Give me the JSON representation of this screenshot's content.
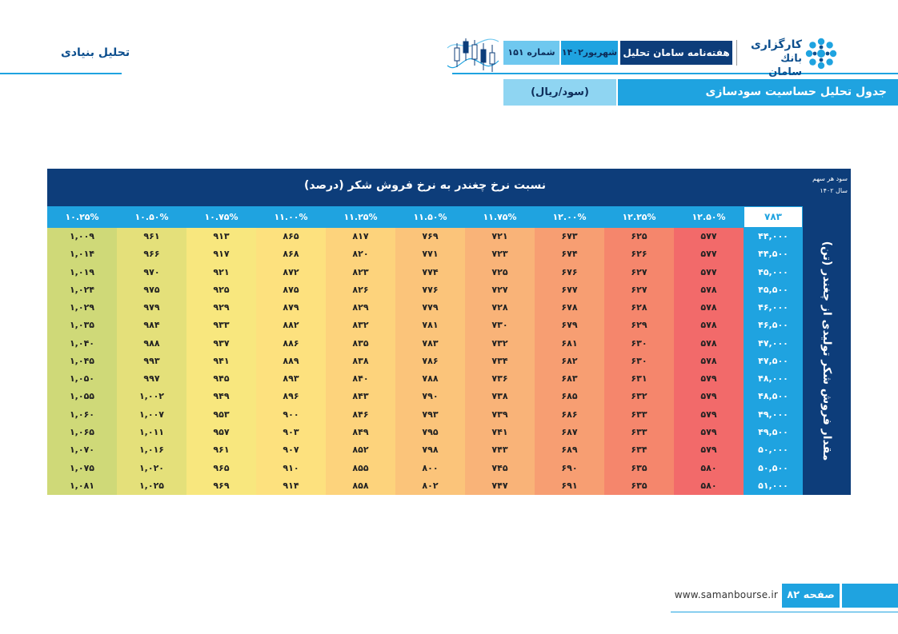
{
  "header": {
    "section_title": "تحلیل بنیادی",
    "brand_line1": "کارگزاری",
    "brand_line2": "بانك سامان",
    "weekly_label": "هفته‌نامه سامان تحلیل",
    "month_label": "شهریور۱۴۰۲",
    "issue_label": "شماره ۱۵۱",
    "page_title": "جدول تحلیل حساسیت سودسازی",
    "unit_label": "(سود/ریال)"
  },
  "table": {
    "header_title": "نسبت نرخ چغندر به نرخ فروش شکر (درصد)",
    "corner_line1": "سود هر سهم",
    "corner_line2": "سال ۱۴۰۲",
    "base_value": "۷۸۳",
    "side_label": "مقدار فروش شکر تولیدی از چغندر (تن)",
    "columns": [
      "۱۲.۵۰%",
      "۱۲.۲۵%",
      "۱۲.۰۰%",
      "۱۱.۷۵%",
      "۱۱.۵۰%",
      "۱۱.۲۵%",
      "۱۱.۰۰%",
      "۱۰.۷۵%",
      "۱۰.۵۰%",
      "۱۰.۲۵%"
    ],
    "column_colors": [
      "#f26a6a",
      "#f5866c",
      "#f79e72",
      "#f9b378",
      "#fbc47a",
      "#fdd37c",
      "#fde17e",
      "#f8e77e",
      "#e4e07a",
      "#cfd978"
    ],
    "rows": [
      {
        "label": "۴۴,۰۰۰",
        "values": [
          "۵۷۷",
          "۶۲۵",
          "۶۷۳",
          "۷۲۱",
          "۷۶۹",
          "۸۱۷",
          "۸۶۵",
          "۹۱۳",
          "۹۶۱",
          "۱,۰۰۹"
        ]
      },
      {
        "label": "۴۴,۵۰۰",
        "values": [
          "۵۷۷",
          "۶۲۶",
          "۶۷۴",
          "۷۲۳",
          "۷۷۱",
          "۸۲۰",
          "۸۶۸",
          "۹۱۷",
          "۹۶۶",
          "۱,۰۱۴"
        ]
      },
      {
        "label": "۴۵,۰۰۰",
        "values": [
          "۵۷۷",
          "۶۲۷",
          "۶۷۶",
          "۷۲۵",
          "۷۷۴",
          "۸۲۳",
          "۸۷۲",
          "۹۲۱",
          "۹۷۰",
          "۱,۰۱۹"
        ]
      },
      {
        "label": "۴۵,۵۰۰",
        "values": [
          "۵۷۸",
          "۶۲۷",
          "۶۷۷",
          "۷۲۷",
          "۷۷۶",
          "۸۲۶",
          "۸۷۵",
          "۹۲۵",
          "۹۷۵",
          "۱,۰۲۴"
        ]
      },
      {
        "label": "۴۶,۰۰۰",
        "values": [
          "۵۷۸",
          "۶۲۸",
          "۶۷۸",
          "۷۲۸",
          "۷۷۹",
          "۸۲۹",
          "۸۷۹",
          "۹۲۹",
          "۹۷۹",
          "۱,۰۲۹"
        ]
      },
      {
        "label": "۴۶,۵۰۰",
        "values": [
          "۵۷۸",
          "۶۲۹",
          "۶۷۹",
          "۷۳۰",
          "۷۸۱",
          "۸۳۲",
          "۸۸۲",
          "۹۳۳",
          "۹۸۴",
          "۱,۰۳۵"
        ]
      },
      {
        "label": "۴۷,۰۰۰",
        "values": [
          "۵۷۸",
          "۶۳۰",
          "۶۸۱",
          "۷۳۲",
          "۷۸۳",
          "۸۳۵",
          "۸۸۶",
          "۹۳۷",
          "۹۸۸",
          "۱,۰۴۰"
        ]
      },
      {
        "label": "۴۷,۵۰۰",
        "values": [
          "۵۷۸",
          "۶۳۰",
          "۶۸۲",
          "۷۳۴",
          "۷۸۶",
          "۸۳۸",
          "۸۸۹",
          "۹۴۱",
          "۹۹۳",
          "۱,۰۴۵"
        ]
      },
      {
        "label": "۴۸,۰۰۰",
        "values": [
          "۵۷۹",
          "۶۳۱",
          "۶۸۳",
          "۷۳۶",
          "۷۸۸",
          "۸۴۰",
          "۸۹۳",
          "۹۴۵",
          "۹۹۷",
          "۱,۰۵۰"
        ]
      },
      {
        "label": "۴۸,۵۰۰",
        "values": [
          "۵۷۹",
          "۶۳۲",
          "۶۸۵",
          "۷۳۸",
          "۷۹۰",
          "۸۴۳",
          "۸۹۶",
          "۹۴۹",
          "۱,۰۰۲",
          "۱,۰۵۵"
        ]
      },
      {
        "label": "۴۹,۰۰۰",
        "values": [
          "۵۷۹",
          "۶۳۳",
          "۶۸۶",
          "۷۳۹",
          "۷۹۳",
          "۸۴۶",
          "۹۰۰",
          "۹۵۳",
          "۱,۰۰۷",
          "۱,۰۶۰"
        ]
      },
      {
        "label": "۴۹,۵۰۰",
        "values": [
          "۵۷۹",
          "۶۳۳",
          "۶۸۷",
          "۷۴۱",
          "۷۹۵",
          "۸۴۹",
          "۹۰۳",
          "۹۵۷",
          "۱,۰۱۱",
          "۱,۰۶۵"
        ]
      },
      {
        "label": "۵۰,۰۰۰",
        "values": [
          "۵۷۹",
          "۶۳۴",
          "۶۸۹",
          "۷۴۳",
          "۷۹۸",
          "۸۵۲",
          "۹۰۷",
          "۹۶۱",
          "۱,۰۱۶",
          "۱,۰۷۰"
        ]
      },
      {
        "label": "۵۰,۵۰۰",
        "values": [
          "۵۸۰",
          "۶۳۵",
          "۶۹۰",
          "۷۴۵",
          "۸۰۰",
          "۸۵۵",
          "۹۱۰",
          "۹۶۵",
          "۱,۰۲۰",
          "۱,۰۷۵"
        ]
      },
      {
        "label": "۵۱,۰۰۰",
        "values": [
          "۵۸۰",
          "۶۳۵",
          "۶۹۱",
          "۷۴۷",
          "۸۰۲",
          "۸۵۸",
          "۹۱۴",
          "۹۶۹",
          "۱,۰۲۵",
          "۱,۰۸۱"
        ]
      }
    ]
  },
  "footer": {
    "page_label": "صفحه ۸۲",
    "url": "www.samanbourse.ir"
  }
}
